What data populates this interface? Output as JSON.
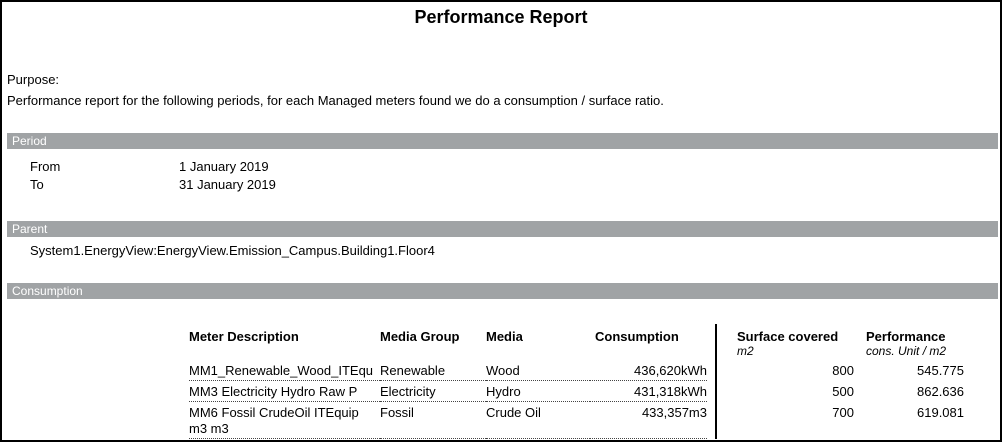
{
  "page": {
    "title": "Performance Report"
  },
  "purpose": {
    "label": "Purpose:",
    "text": "Performance report for the following periods, for each Managed meters found we do a consumption / surface ratio."
  },
  "period": {
    "header": "Period",
    "rows": [
      {
        "label": "From",
        "value": "1 January 2019"
      },
      {
        "label": "To",
        "value": "31 January 2019"
      }
    ]
  },
  "parent": {
    "header": "Parent",
    "value": "System1.EnergyView:EnergyView.Emission_Campus.Building1.Floor4"
  },
  "consumption": {
    "header": "Consumption",
    "columns": {
      "meter": "Meter Description",
      "media_group": "Media Group",
      "media": "Media",
      "consumption": "Consumption",
      "surface": "Surface covered",
      "surface_unit": "m2",
      "performance": "Performance",
      "performance_unit": "cons. Unit / m2"
    },
    "rows": [
      {
        "meter": "MM1_Renewable_Wood_ITEqu",
        "media_group": "Renewable",
        "media": "Wood",
        "consumption": "436,620kWh",
        "surface": "800",
        "performance": "545.775"
      },
      {
        "meter": "MM3 Electricity Hydro Raw P",
        "media_group": "Electricity",
        "media": "Hydro",
        "consumption": "431,318kWh",
        "surface": "500",
        "performance": "862.636"
      },
      {
        "meter": "MM6 Fossil CrudeOil ITEquip m3 m3",
        "media_group": "Fossil",
        "media": "Crude Oil",
        "consumption": "433,357m3",
        "surface": "700",
        "performance": "619.081"
      }
    ]
  },
  "colors": {
    "section_bar": "#a0a3a5",
    "bar_text": "#ffffff"
  }
}
